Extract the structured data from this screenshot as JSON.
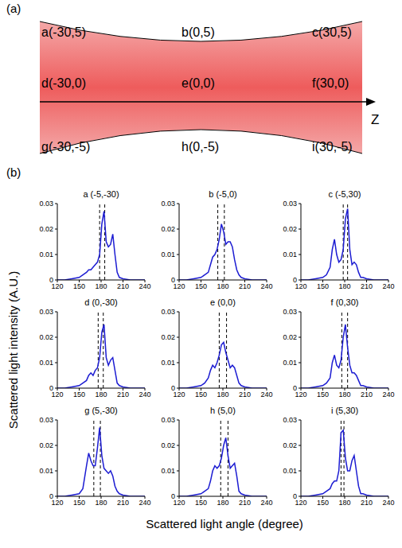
{
  "panel_a": {
    "label": "(a)",
    "axis_label": "Z",
    "points": [
      "a(-30,5)",
      "b(0,5)",
      "c(30,5)",
      "d(-30,0)",
      "e(0,0)",
      "f(30,0)",
      "g(-30,-5)",
      "h(0,-5)",
      "i(30,-5)"
    ]
  },
  "panel_b": {
    "label": "(b)",
    "x_label": "Scattered light angle (degree)",
    "y_label": "Scattered light intensity (A.U.)"
  },
  "chart_data": [
    {
      "type": "line",
      "title": "a (-5,-30)",
      "x": [
        120,
        130,
        140,
        150,
        155,
        160,
        163,
        166,
        169,
        172,
        175,
        178,
        181,
        184,
        187,
        190,
        193,
        196,
        199,
        202,
        205,
        210,
        220,
        230,
        240
      ],
      "series": [
        {
          "color": "#1c1cd2",
          "values": [
            0,
            0,
            0.0005,
            0.001,
            0.002,
            0.003,
            0.004,
            0.004,
            0.005,
            0.006,
            0.007,
            0.01,
            0.022,
            0.027,
            0.015,
            0.013,
            0.014,
            0.018,
            0.01,
            0.003,
            0.001,
            0.0005,
            0,
            0,
            0
          ]
        }
      ],
      "vlines": [
        178,
        185
      ],
      "xlim": [
        120,
        240
      ],
      "xticks": [
        120,
        150,
        180,
        210,
        240
      ],
      "ylim": [
        0,
        0.03
      ],
      "yticks": [
        0,
        0.01,
        0.02,
        0.03
      ]
    },
    {
      "type": "line",
      "title": "b (-5,0)",
      "x": [
        120,
        130,
        140,
        150,
        155,
        160,
        163,
        166,
        169,
        172,
        175,
        178,
        181,
        184,
        187,
        190,
        193,
        196,
        199,
        202,
        205,
        210,
        220,
        230,
        240
      ],
      "series": [
        {
          "color": "#1c1cd2",
          "values": [
            0,
            0,
            0.0005,
            0.001,
            0.002,
            0.003,
            0.006,
            0.009,
            0.01,
            0.012,
            0.016,
            0.022,
            0.019,
            0.014,
            0.015,
            0.015,
            0.013,
            0.008,
            0.004,
            0.002,
            0.001,
            0.0005,
            0,
            0,
            0
          ]
        }
      ],
      "vlines": [
        173,
        182
      ],
      "xlim": [
        120,
        240
      ],
      "xticks": [
        120,
        150,
        180,
        210,
        240
      ],
      "ylim": [
        0,
        0.03
      ],
      "yticks": [
        0,
        0.01,
        0.02,
        0.03
      ]
    },
    {
      "type": "line",
      "title": "c (-5,30)",
      "x": [
        120,
        130,
        140,
        150,
        155,
        160,
        163,
        166,
        169,
        172,
        175,
        178,
        181,
        184,
        187,
        190,
        193,
        196,
        199,
        202,
        205,
        210,
        220,
        230,
        240
      ],
      "series": [
        {
          "color": "#1c1cd2",
          "values": [
            0,
            0,
            0.0005,
            0.001,
            0.002,
            0.005,
            0.012,
            0.016,
            0.01,
            0.007,
            0.008,
            0.012,
            0.024,
            0.028,
            0.012,
            0.006,
            0.007,
            0.006,
            0.003,
            0.001,
            0.001,
            0.0005,
            0,
            0,
            0
          ]
        }
      ],
      "vlines": [
        178,
        184
      ],
      "xlim": [
        120,
        240
      ],
      "xticks": [
        120,
        150,
        180,
        210,
        240
      ],
      "ylim": [
        0,
        0.03
      ],
      "yticks": [
        0,
        0.01,
        0.02,
        0.03
      ]
    },
    {
      "type": "line",
      "title": "d (0,-30)",
      "x": [
        120,
        130,
        140,
        150,
        155,
        160,
        163,
        166,
        169,
        172,
        175,
        178,
        181,
        184,
        187,
        190,
        193,
        196,
        199,
        202,
        205,
        210,
        220,
        230,
        240
      ],
      "series": [
        {
          "color": "#1c1cd2",
          "values": [
            0,
            0,
            0.0005,
            0.001,
            0.002,
            0.003,
            0.005,
            0.006,
            0.005,
            0.007,
            0.008,
            0.012,
            0.022,
            0.025,
            0.012,
            0.009,
            0.011,
            0.012,
            0.007,
            0.002,
            0.001,
            0.0005,
            0,
            0,
            0
          ]
        }
      ],
      "vlines": [
        176,
        183
      ],
      "xlim": [
        120,
        240
      ],
      "xticks": [
        120,
        150,
        180,
        210,
        240
      ],
      "ylim": [
        0,
        0.03
      ],
      "yticks": [
        0,
        0.01,
        0.02,
        0.03
      ]
    },
    {
      "type": "line",
      "title": "e (0,0)",
      "x": [
        120,
        130,
        140,
        150,
        155,
        160,
        163,
        166,
        169,
        172,
        175,
        178,
        181,
        184,
        187,
        190,
        193,
        196,
        199,
        202,
        205,
        210,
        220,
        230,
        240
      ],
      "series": [
        {
          "color": "#1c1cd2",
          "values": [
            0,
            0,
            0.0005,
            0.001,
            0.002,
            0.004,
            0.007,
            0.009,
            0.008,
            0.01,
            0.013,
            0.017,
            0.018,
            0.014,
            0.011,
            0.008,
            0.009,
            0.008,
            0.005,
            0.002,
            0.001,
            0.0005,
            0,
            0,
            0
          ]
        }
      ],
      "vlines": [
        175,
        185
      ],
      "xlim": [
        120,
        240
      ],
      "xticks": [
        120,
        150,
        180,
        210,
        240
      ],
      "ylim": [
        0,
        0.03
      ],
      "yticks": [
        0,
        0.01,
        0.02,
        0.03
      ]
    },
    {
      "type": "line",
      "title": "f (0,30)",
      "x": [
        120,
        130,
        140,
        150,
        155,
        160,
        163,
        166,
        169,
        172,
        175,
        178,
        181,
        184,
        187,
        190,
        193,
        196,
        199,
        202,
        205,
        210,
        220,
        230,
        240
      ],
      "series": [
        {
          "color": "#1c1cd2",
          "values": [
            0,
            0,
            0.0005,
            0.001,
            0.002,
            0.004,
            0.01,
            0.013,
            0.009,
            0.008,
            0.011,
            0.02,
            0.025,
            0.016,
            0.009,
            0.006,
            0.006,
            0.005,
            0.003,
            0.001,
            0.001,
            0.0005,
            0,
            0,
            0
          ]
        }
      ],
      "vlines": [
        176,
        184
      ],
      "xlim": [
        120,
        240
      ],
      "xticks": [
        120,
        150,
        180,
        210,
        240
      ],
      "ylim": [
        0,
        0.03
      ],
      "yticks": [
        0,
        0.01,
        0.02,
        0.03
      ]
    },
    {
      "type": "line",
      "title": "g (5,-30)",
      "x": [
        120,
        130,
        140,
        150,
        155,
        160,
        163,
        166,
        169,
        172,
        175,
        178,
        181,
        184,
        187,
        190,
        193,
        196,
        199,
        202,
        205,
        210,
        220,
        230,
        240
      ],
      "series": [
        {
          "color": "#1c1cd2",
          "values": [
            0,
            0,
            0.0005,
            0.001,
            0.003,
            0.012,
            0.017,
            0.014,
            0.012,
            0.012,
            0.019,
            0.027,
            0.016,
            0.011,
            0.01,
            0.009,
            0.01,
            0.008,
            0.004,
            0.002,
            0.001,
            0.0005,
            0,
            0,
            0
          ]
        }
      ],
      "vlines": [
        170,
        179
      ],
      "xlim": [
        120,
        240
      ],
      "xticks": [
        120,
        150,
        180,
        210,
        240
      ],
      "ylim": [
        0,
        0.03
      ],
      "yticks": [
        0,
        0.01,
        0.02,
        0.03
      ]
    },
    {
      "type": "line",
      "title": "h (5,0)",
      "x": [
        120,
        130,
        140,
        150,
        155,
        160,
        163,
        166,
        169,
        172,
        175,
        178,
        181,
        184,
        187,
        190,
        193,
        196,
        199,
        202,
        205,
        210,
        220,
        230,
        240
      ],
      "series": [
        {
          "color": "#1c1cd2",
          "values": [
            0,
            0,
            0.0005,
            0.001,
            0.002,
            0.003,
            0.006,
            0.01,
            0.012,
            0.011,
            0.012,
            0.015,
            0.02,
            0.023,
            0.016,
            0.011,
            0.012,
            0.013,
            0.008,
            0.002,
            0.001,
            0.0005,
            0,
            0,
            0
          ]
        }
      ],
      "vlines": [
        177,
        187
      ],
      "xlim": [
        120,
        240
      ],
      "xticks": [
        120,
        150,
        180,
        210,
        240
      ],
      "ylim": [
        0,
        0.03
      ],
      "yticks": [
        0,
        0.01,
        0.02,
        0.03
      ]
    },
    {
      "type": "line",
      "title": "i (5,30)",
      "x": [
        120,
        130,
        140,
        150,
        155,
        160,
        163,
        166,
        169,
        172,
        175,
        178,
        181,
        184,
        187,
        190,
        193,
        196,
        199,
        202,
        205,
        210,
        220,
        230,
        240
      ],
      "series": [
        {
          "color": "#1c1cd2",
          "values": [
            0,
            0,
            0.0005,
            0.001,
            0.002,
            0.003,
            0.005,
            0.006,
            0.006,
            0.01,
            0.025,
            0.026,
            0.015,
            0.01,
            0.01,
            0.014,
            0.016,
            0.01,
            0.004,
            0.001,
            0.001,
            0.0005,
            0,
            0,
            0
          ]
        }
      ],
      "vlines": [
        175,
        179
      ],
      "xlim": [
        120,
        240
      ],
      "xticks": [
        120,
        150,
        180,
        210,
        240
      ],
      "ylim": [
        0,
        0.03
      ],
      "yticks": [
        0,
        0.01,
        0.02,
        0.03
      ]
    }
  ]
}
